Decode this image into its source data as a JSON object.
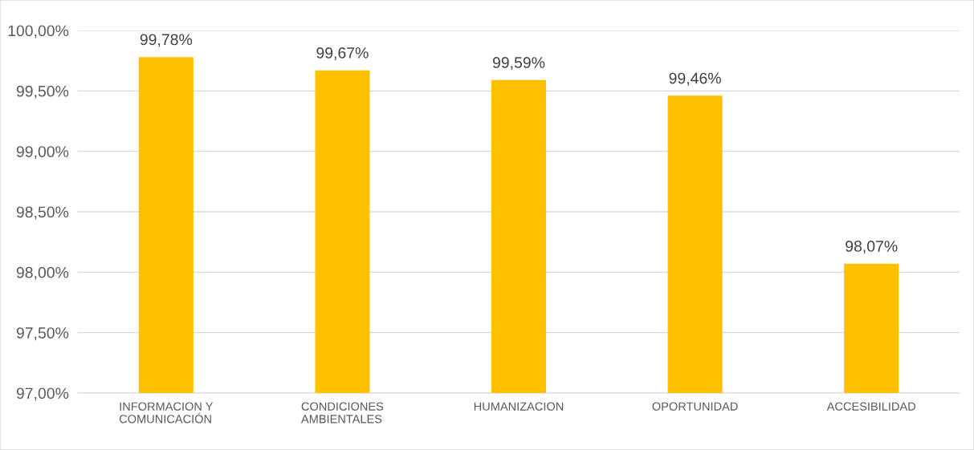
{
  "chart_data": {
    "type": "bar",
    "categories": [
      "INFORMACION Y\nCOMUNICACIÓN",
      "CONDICIONES\nAMBIENTALES",
      "HUMANIZACION",
      "OPORTUNIDAD",
      "ACCESIBILIDAD"
    ],
    "values": [
      99.78,
      99.67,
      99.59,
      99.46,
      98.07
    ],
    "value_labels": [
      "99,78%",
      "99,67%",
      "99,59%",
      "99,46%",
      "98,07%"
    ],
    "color": "#ffc000",
    "ylim": [
      97,
      100
    ],
    "yticks": [
      {
        "value": 97,
        "label": "97,00%"
      },
      {
        "value": 97.5,
        "label": "97,50%"
      },
      {
        "value": 98,
        "label": "98,00%"
      },
      {
        "value": 98.5,
        "label": "98,50%"
      },
      {
        "value": 99,
        "label": "99,00%"
      },
      {
        "value": 99.5,
        "label": "99,50%"
      },
      {
        "value": 100,
        "label": "100,00%"
      }
    ],
    "grid": "y"
  }
}
